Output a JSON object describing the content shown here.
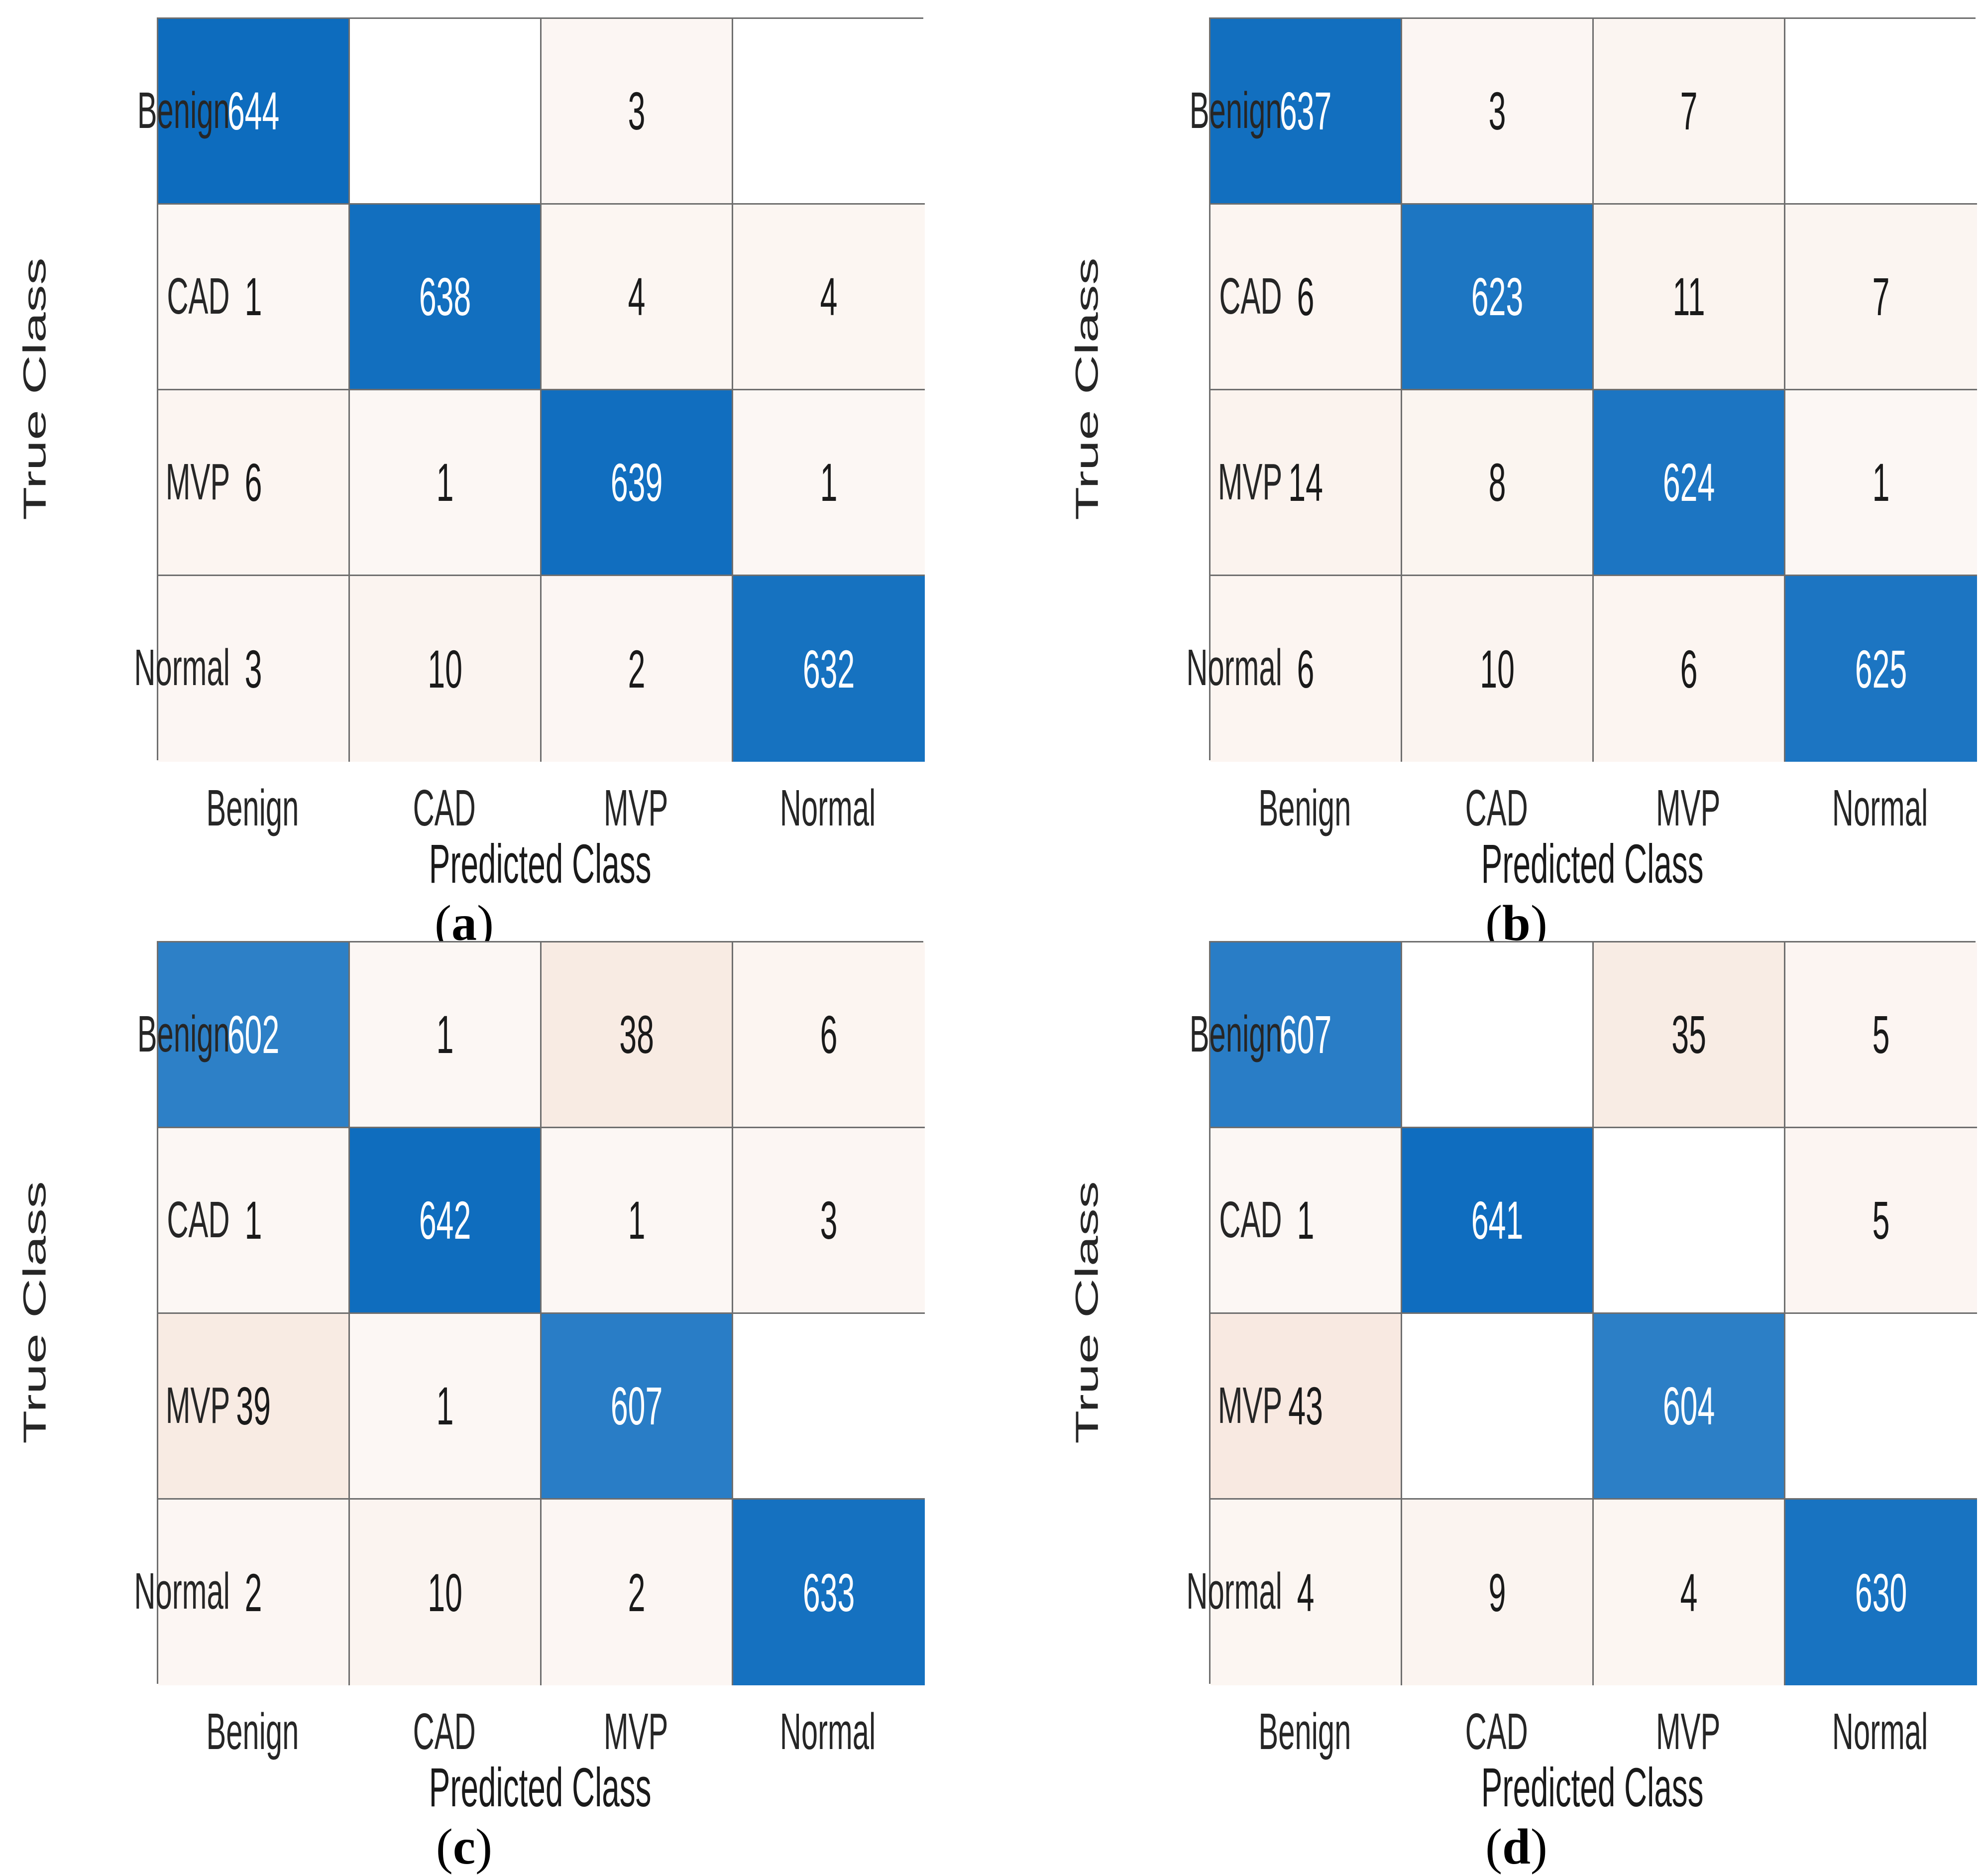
{
  "figure": {
    "y_axis_title": "True Class",
    "x_axis_title": "Predicted Class",
    "classes": [
      "Benign",
      "CAD",
      "MVP",
      "Normal"
    ],
    "caption_open": "(",
    "caption_close": ")",
    "colors": {
      "background": "#ffffff",
      "diagonal_blue": "#0d6cbe",
      "offdiag_tint_base": "#cd6f36",
      "empty_cell": "#ffffff",
      "grid_line": "#6e6e6e",
      "cell_text_dark": "#1a1a1a",
      "cell_text_light": "#ffffff",
      "label_text": "#262626"
    }
  },
  "chart_data": [
    {
      "type": "heatmap",
      "caption_letter": "a",
      "title": "(a)",
      "xlabel": "Predicted Class",
      "ylabel": "True Class",
      "x_categories": [
        "Benign",
        "CAD",
        "MVP",
        "Normal"
      ],
      "y_categories": [
        "Benign",
        "CAD",
        "MVP",
        "Normal"
      ],
      "values": [
        [
          644,
          0,
          3,
          0
        ],
        [
          1,
          638,
          4,
          4
        ],
        [
          6,
          1,
          639,
          1
        ],
        [
          3,
          10,
          2,
          632
        ]
      ]
    },
    {
      "type": "heatmap",
      "caption_letter": "b",
      "title": "(b)",
      "xlabel": "Predicted Class",
      "ylabel": "True Class",
      "x_categories": [
        "Benign",
        "CAD",
        "MVP",
        "Normal"
      ],
      "y_categories": [
        "Benign",
        "CAD",
        "MVP",
        "Normal"
      ],
      "values": [
        [
          637,
          3,
          7,
          0
        ],
        [
          6,
          623,
          11,
          7
        ],
        [
          14,
          8,
          624,
          1
        ],
        [
          6,
          10,
          6,
          625
        ]
      ]
    },
    {
      "type": "heatmap",
      "caption_letter": "c",
      "title": "(c)",
      "xlabel": "Predicted Class",
      "ylabel": "True Class",
      "x_categories": [
        "Benign",
        "CAD",
        "MVP",
        "Normal"
      ],
      "y_categories": [
        "Benign",
        "CAD",
        "MVP",
        "Normal"
      ],
      "values": [
        [
          602,
          1,
          38,
          6
        ],
        [
          1,
          642,
          1,
          3
        ],
        [
          39,
          1,
          607,
          0
        ],
        [
          2,
          10,
          2,
          633
        ]
      ]
    },
    {
      "type": "heatmap",
      "caption_letter": "d",
      "title": "(d)",
      "xlabel": "Predicted Class",
      "ylabel": "True Class",
      "x_categories": [
        "Benign",
        "CAD",
        "MVP",
        "Normal"
      ],
      "y_categories": [
        "Benign",
        "CAD",
        "MVP",
        "Normal"
      ],
      "values": [
        [
          607,
          0,
          35,
          5
        ],
        [
          1,
          641,
          0,
          5
        ],
        [
          43,
          0,
          604,
          0
        ],
        [
          4,
          9,
          4,
          630
        ]
      ]
    }
  ]
}
